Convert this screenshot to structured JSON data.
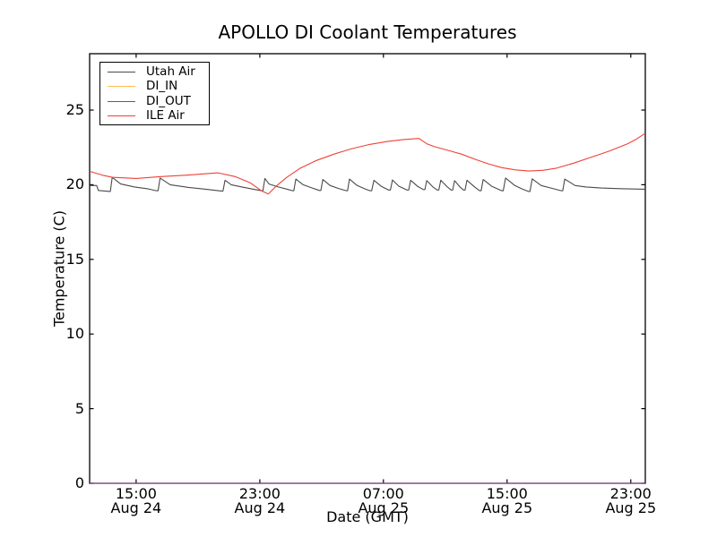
{
  "chart_data": {
    "type": "line",
    "title": "APOLLO DI Coolant Temperatures",
    "xlabel": "Date (GMT)",
    "ylabel": "Temperature (C)",
    "x_unit": "hours_since_Aug_24_00:00_GMT",
    "xlim": [
      11.99,
      47.94
    ],
    "ylim": [
      0,
      28.78
    ],
    "grid": false,
    "legend_position": "upper-left",
    "frame_color": "#000000",
    "y_ticks": [
      0,
      5,
      10,
      15,
      20,
      25
    ],
    "x_ticks": [
      {
        "hour": 15,
        "time": "15:00",
        "date": "Aug 24"
      },
      {
        "hour": 23,
        "time": "23:00",
        "date": "Aug 24"
      },
      {
        "hour": 31,
        "time": "07:00",
        "date": "Aug 25"
      },
      {
        "hour": 39,
        "time": "15:00",
        "date": "Aug 25"
      },
      {
        "hour": 47,
        "time": "23:00",
        "date": "Aug 25"
      }
    ],
    "series": [
      {
        "name": "Utah Air",
        "color": "#4a4a4a",
        "points": [
          [
            11.99,
            19.95
          ],
          [
            12.45,
            19.95
          ],
          [
            12.55,
            19.62
          ],
          [
            13.3,
            19.55
          ],
          [
            13.33,
            19.55
          ],
          [
            13.45,
            20.5
          ],
          [
            14.0,
            20.05
          ],
          [
            14.9,
            19.85
          ],
          [
            15.8,
            19.72
          ],
          [
            16.3,
            19.6
          ],
          [
            16.42,
            19.6
          ],
          [
            16.55,
            20.45
          ],
          [
            17.2,
            20.0
          ],
          [
            18.4,
            19.82
          ],
          [
            19.5,
            19.7
          ],
          [
            20.5,
            19.58
          ],
          [
            20.62,
            19.58
          ],
          [
            20.75,
            20.3
          ],
          [
            21.15,
            20.0
          ],
          [
            21.85,
            19.85
          ],
          [
            22.7,
            19.68
          ],
          [
            23.12,
            19.6
          ],
          [
            23.2,
            19.6
          ],
          [
            23.33,
            20.42
          ],
          [
            23.6,
            20.05
          ],
          [
            24.2,
            19.85
          ],
          [
            24.85,
            19.68
          ],
          [
            25.12,
            19.6
          ],
          [
            25.2,
            19.6
          ],
          [
            25.33,
            20.38
          ],
          [
            25.8,
            20.0
          ],
          [
            26.4,
            19.78
          ],
          [
            26.85,
            19.62
          ],
          [
            26.95,
            19.62
          ],
          [
            27.08,
            20.35
          ],
          [
            27.55,
            19.95
          ],
          [
            28.1,
            19.75
          ],
          [
            28.6,
            19.6
          ],
          [
            28.68,
            19.6
          ],
          [
            28.8,
            20.38
          ],
          [
            29.3,
            19.95
          ],
          [
            29.85,
            19.7
          ],
          [
            30.12,
            19.6
          ],
          [
            30.24,
            19.6
          ],
          [
            30.38,
            20.3
          ],
          [
            30.85,
            19.9
          ],
          [
            31.33,
            19.65
          ],
          [
            31.45,
            19.65
          ],
          [
            31.58,
            20.32
          ],
          [
            32.0,
            19.9
          ],
          [
            32.52,
            19.65
          ],
          [
            32.63,
            19.65
          ],
          [
            32.76,
            20.3
          ],
          [
            33.2,
            19.9
          ],
          [
            33.58,
            19.68
          ],
          [
            33.68,
            19.68
          ],
          [
            33.8,
            20.28
          ],
          [
            34.2,
            19.85
          ],
          [
            34.48,
            19.65
          ],
          [
            34.58,
            19.65
          ],
          [
            34.71,
            20.3
          ],
          [
            35.1,
            19.88
          ],
          [
            35.38,
            19.65
          ],
          [
            35.48,
            19.65
          ],
          [
            35.6,
            20.28
          ],
          [
            35.95,
            19.85
          ],
          [
            36.18,
            19.65
          ],
          [
            36.28,
            19.65
          ],
          [
            36.4,
            20.3
          ],
          [
            36.9,
            19.85
          ],
          [
            37.22,
            19.6
          ],
          [
            37.32,
            19.6
          ],
          [
            37.45,
            20.35
          ],
          [
            38.0,
            19.9
          ],
          [
            38.65,
            19.6
          ],
          [
            38.75,
            19.6
          ],
          [
            38.9,
            20.45
          ],
          [
            39.5,
            19.95
          ],
          [
            40.0,
            19.7
          ],
          [
            40.38,
            19.55
          ],
          [
            40.48,
            19.55
          ],
          [
            40.62,
            20.4
          ],
          [
            41.2,
            19.95
          ],
          [
            41.95,
            19.75
          ],
          [
            42.5,
            19.6
          ],
          [
            42.6,
            19.6
          ],
          [
            42.73,
            20.38
          ],
          [
            43.4,
            19.95
          ],
          [
            44.1,
            19.85
          ],
          [
            45.1,
            19.78
          ],
          [
            46.3,
            19.74
          ],
          [
            47.94,
            19.7
          ]
        ]
      },
      {
        "name": "DI_IN",
        "color": "#ffbb55",
        "points": [
          [
            11.99,
            0
          ],
          [
            47.94,
            0
          ]
        ]
      },
      {
        "name": "DI_OUT",
        "color": "#93399e",
        "points": [
          [
            11.99,
            0
          ],
          [
            47.94,
            0
          ]
        ]
      },
      {
        "name": "ILE Air",
        "color": "#ef4135",
        "points": [
          [
            11.99,
            20.9
          ],
          [
            12.9,
            20.62
          ],
          [
            13.45,
            20.5
          ],
          [
            15.0,
            20.42
          ],
          [
            16.6,
            20.55
          ],
          [
            18.4,
            20.65
          ],
          [
            20.3,
            20.8
          ],
          [
            21.4,
            20.55
          ],
          [
            22.4,
            20.12
          ],
          [
            23.1,
            19.6
          ],
          [
            23.55,
            19.38
          ],
          [
            24.05,
            19.9
          ],
          [
            24.75,
            20.5
          ],
          [
            25.6,
            21.1
          ],
          [
            26.6,
            21.6
          ],
          [
            27.8,
            22.05
          ],
          [
            28.9,
            22.4
          ],
          [
            30.1,
            22.7
          ],
          [
            31.25,
            22.9
          ],
          [
            32.3,
            23.03
          ],
          [
            33.3,
            23.1
          ],
          [
            33.8,
            22.75
          ],
          [
            34.3,
            22.55
          ],
          [
            35.2,
            22.3
          ],
          [
            36.05,
            22.05
          ],
          [
            36.95,
            21.7
          ],
          [
            37.8,
            21.4
          ],
          [
            38.65,
            21.15
          ],
          [
            39.55,
            21.0
          ],
          [
            40.4,
            20.92
          ],
          [
            41.3,
            20.97
          ],
          [
            42.15,
            21.1
          ],
          [
            43.3,
            21.45
          ],
          [
            44.45,
            21.85
          ],
          [
            45.6,
            22.25
          ],
          [
            46.8,
            22.75
          ],
          [
            47.35,
            23.05
          ],
          [
            47.94,
            23.45
          ]
        ]
      }
    ]
  }
}
